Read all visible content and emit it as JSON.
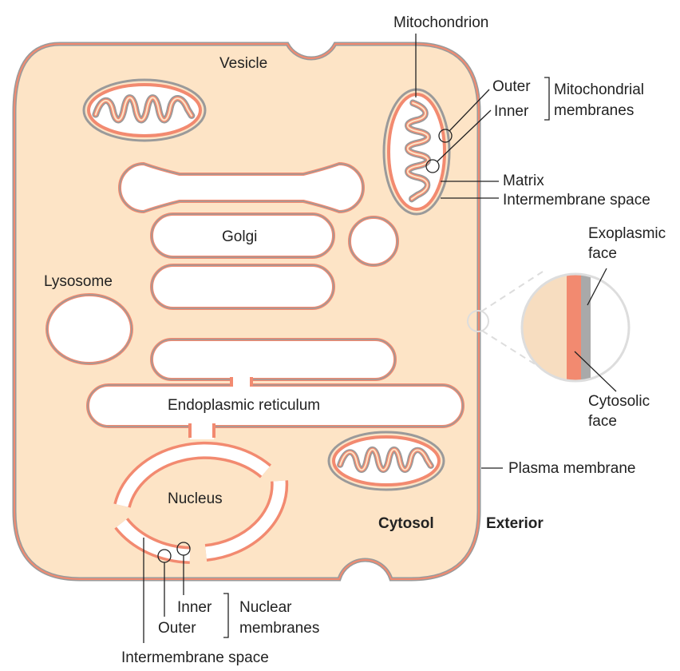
{
  "colors": {
    "cytosol": "#fde4c6",
    "inner_membrane": "#f28a70",
    "outer_membrane": "#9a9a9a",
    "lumen": "#ffffff",
    "text": "#222222"
  },
  "labels": {
    "mitochondrion": "Mitochondrion",
    "vesicle": "Vesicle",
    "outer": "Outer",
    "inner": "Inner",
    "mitochondrial": "Mitochondrial",
    "membranes": "membranes",
    "matrix": "Matrix",
    "intermembrane_space_mito": "Intermembrane space",
    "golgi": "Golgi",
    "exoplasmic": "Exoplasmic",
    "exoplasmic_face": "face",
    "lysosome": "Lysosome",
    "cytosolic": "Cytosolic",
    "cytosolic_face": "face",
    "endoplasmic_reticulum": "Endoplasmic reticulum",
    "plasma_membrane": "Plasma membrane",
    "nucleus": "Nucleus",
    "cytosol": "Cytosol",
    "exterior": "Exterior",
    "nuclear_inner": "Inner",
    "nuclear_outer": "Outer",
    "nuclear": "Nuclear",
    "nuclear_membranes": "membranes",
    "intermembrane_space_nuclear": "Intermembrane space"
  }
}
